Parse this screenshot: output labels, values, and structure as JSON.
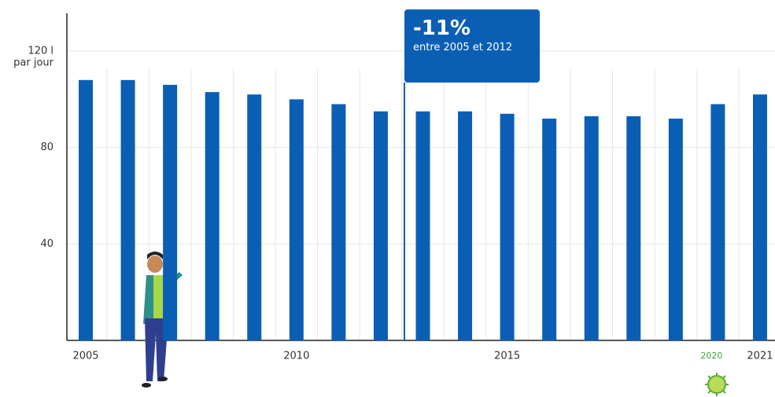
{
  "chart_data": {
    "type": "bar",
    "categories": [
      "2005",
      null,
      null,
      null,
      null,
      "2010",
      null,
      null,
      null,
      null,
      "2015",
      null,
      null,
      null,
      null,
      "2020",
      "2021"
    ],
    "values": [
      108,
      108,
      106,
      103,
      102,
      100,
      98,
      95,
      95,
      95,
      94,
      92,
      93,
      93,
      92,
      98,
      102
    ],
    "color": "#0a5fb4",
    "ylim": [
      0,
      120
    ],
    "yticks": [
      40,
      80,
      {
        "value": 120,
        "label": "120 l"
      }
    ],
    "y_unit": "par jour",
    "annotation": {
      "value": "-11%",
      "text": "entre 2005 et 2012"
    },
    "grid": true
  }
}
